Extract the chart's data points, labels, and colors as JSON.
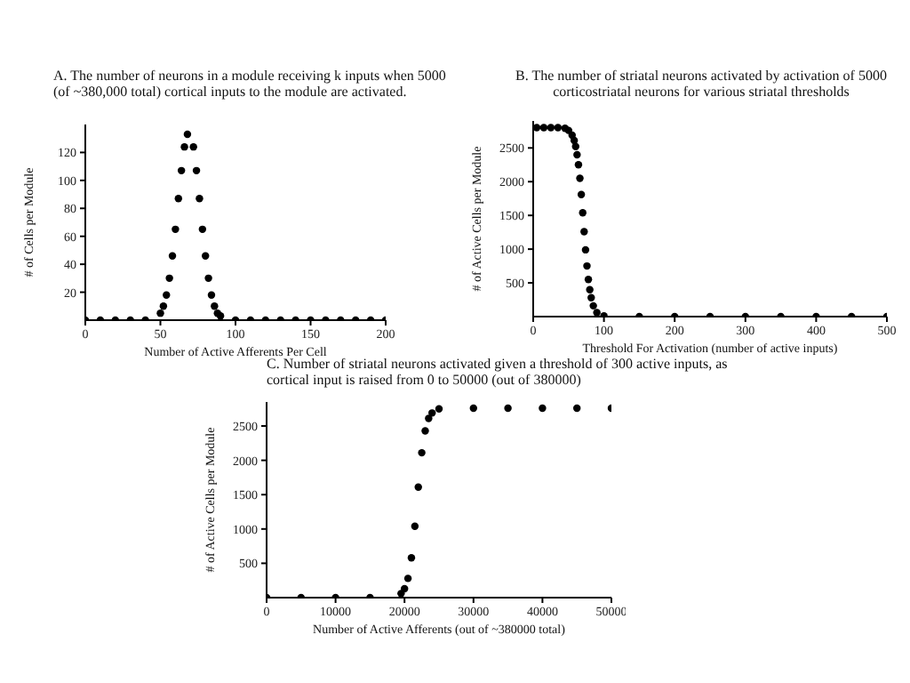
{
  "chart_data": [
    {
      "type": "scatter",
      "title": "A.  The number of neurons in a module receiving k inputs when 5000 (of ~380,000 total) cortical inputs to the module are activated.",
      "xlabel": "Number of Active Afferents Per Cell",
      "ylabel": "# of Cells per Module",
      "color": "#000000",
      "marker": "circle",
      "grid": false,
      "xlim": [
        0,
        200
      ],
      "xticks": [
        0,
        50,
        100,
        150,
        200
      ],
      "ylim": [
        0,
        140
      ],
      "yticks": [
        20,
        40,
        60,
        80,
        100,
        120
      ],
      "x": [
        0,
        10,
        20,
        30,
        40,
        50,
        52,
        54,
        56,
        58,
        60,
        62,
        64,
        66,
        68,
        72,
        74,
        76,
        78,
        80,
        82,
        84,
        86,
        88,
        90,
        100,
        110,
        120,
        130,
        140,
        150,
        160,
        170,
        180,
        190,
        200
      ],
      "values": [
        0,
        0,
        0,
        0,
        0,
        5,
        10,
        18,
        30,
        46,
        65,
        87,
        107,
        124,
        133,
        124,
        107,
        87,
        65,
        46,
        30,
        18,
        10,
        5,
        3,
        0,
        0,
        0,
        0,
        0,
        0,
        0,
        0,
        0,
        0,
        0
      ]
    },
    {
      "type": "scatter",
      "title": "B.  The number of striatal neurons activated by activation of 5000 corticostriatal neurons for various striatal thresholds",
      "xlabel": "Threshold For Activation (number of active inputs)",
      "ylabel": "# of Active Cells per Module",
      "color": "#000000",
      "marker": "circle",
      "grid": false,
      "xlim": [
        0,
        500
      ],
      "xticks": [
        0,
        100,
        200,
        300,
        400,
        500
      ],
      "ylim": [
        0,
        2900
      ],
      "yticks": [
        500,
        1000,
        1500,
        2000,
        2500
      ],
      "x": [
        5,
        15,
        25,
        35,
        45,
        50,
        55,
        58,
        60,
        62,
        64,
        66,
        68,
        70,
        72,
        74,
        76,
        78,
        80,
        82,
        85,
        90,
        100,
        150,
        200,
        250,
        300,
        350,
        400,
        450,
        500
      ],
      "values": [
        2800,
        2800,
        2800,
        2800,
        2790,
        2760,
        2690,
        2610,
        2520,
        2400,
        2250,
        2050,
        1810,
        1540,
        1260,
        990,
        750,
        550,
        400,
        280,
        160,
        60,
        10,
        0,
        0,
        0,
        0,
        0,
        0,
        0,
        0
      ]
    },
    {
      "type": "scatter",
      "title": "C.  Number of striatal neurons activated given a threshold of 300 active inputs, as cortical input is raised from 0 to 50000 (out of 380000)",
      "xlabel": "Number of Active Afferents (out of ~380000 total)",
      "ylabel": "# of Active Cells per Module",
      "color": "#000000",
      "marker": "circle",
      "grid": false,
      "xlim": [
        0,
        50000
      ],
      "xticks": [
        0,
        10000,
        20000,
        30000,
        40000,
        50000
      ],
      "ylim": [
        0,
        2850
      ],
      "yticks": [
        500,
        1000,
        1500,
        2000,
        2500
      ],
      "x": [
        0,
        5000,
        10000,
        15000,
        19500,
        20000,
        20500,
        21000,
        21500,
        22000,
        22500,
        23000,
        23500,
        24000,
        25000,
        30000,
        35000,
        40000,
        45000,
        50000
      ],
      "values": [
        0,
        0,
        0,
        0,
        60,
        130,
        280,
        580,
        1040,
        1610,
        2110,
        2430,
        2610,
        2690,
        2750,
        2760,
        2760,
        2760,
        2760,
        2760
      ]
    }
  ]
}
